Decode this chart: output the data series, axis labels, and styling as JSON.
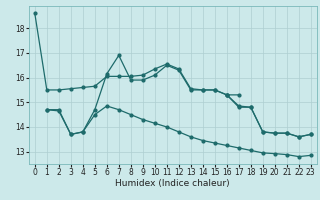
{
  "xlabel": "Humidex (Indice chaleur)",
  "bg_color": "#cce9ea",
  "grid_color": "#aecfd1",
  "line_color": "#1e6b6b",
  "xlim": [
    -0.5,
    23.5
  ],
  "ylim": [
    12.5,
    18.9
  ],
  "yticks": [
    13,
    14,
    15,
    16,
    17,
    18
  ],
  "xticks": [
    0,
    1,
    2,
    3,
    4,
    5,
    6,
    7,
    8,
    9,
    10,
    11,
    12,
    13,
    14,
    15,
    16,
    17,
    18,
    19,
    20,
    21,
    22,
    23
  ],
  "line1_x": [
    0,
    1,
    2,
    3,
    4,
    5,
    6,
    7,
    8,
    9,
    10,
    11,
    12,
    13,
    14,
    15,
    16,
    17
  ],
  "line1_y": [
    18.6,
    15.5,
    15.5,
    15.55,
    15.6,
    15.65,
    16.05,
    16.05,
    16.05,
    16.1,
    16.35,
    16.55,
    16.35,
    15.55,
    15.5,
    15.5,
    15.3,
    15.3
  ],
  "line2_x": [
    1,
    2,
    3,
    4,
    5,
    6,
    7,
    8,
    9,
    10,
    11,
    12,
    13,
    14,
    15,
    16,
    17,
    18,
    19,
    20,
    21,
    22,
    23
  ],
  "line2_y": [
    14.7,
    14.7,
    13.7,
    13.8,
    14.7,
    16.15,
    16.9,
    15.9,
    15.9,
    16.1,
    16.5,
    16.3,
    15.5,
    15.5,
    15.5,
    15.3,
    14.8,
    14.8,
    13.8,
    13.75,
    13.75,
    13.6,
    13.7
  ],
  "line3_x": [
    1,
    2,
    3,
    4,
    5,
    6,
    7,
    8,
    9,
    10,
    11,
    12,
    13,
    14,
    15,
    16,
    17,
    18,
    19,
    20,
    21,
    22,
    23
  ],
  "line3_y": [
    14.7,
    14.65,
    13.7,
    13.8,
    14.5,
    14.85,
    14.7,
    14.5,
    14.3,
    14.15,
    14.0,
    13.8,
    13.6,
    13.45,
    13.35,
    13.25,
    13.15,
    13.05,
    12.95,
    12.92,
    12.88,
    12.8,
    12.85
  ],
  "line4_x": [
    16,
    17,
    18,
    19,
    20,
    21,
    22,
    23
  ],
  "line4_y": [
    15.3,
    14.85,
    14.8,
    13.8,
    13.75,
    13.75,
    13.6,
    13.7
  ]
}
